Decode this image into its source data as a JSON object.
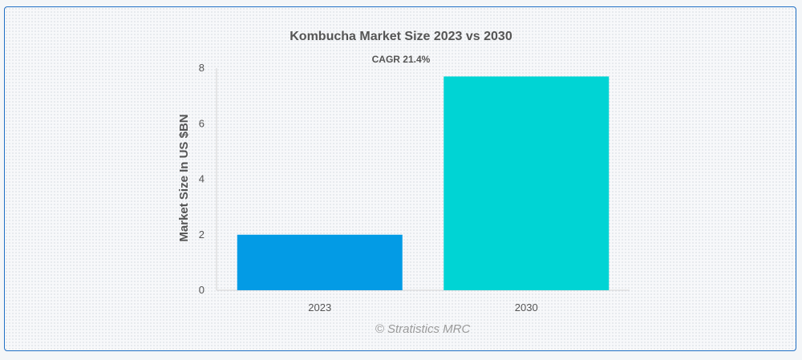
{
  "chart_data": {
    "type": "bar",
    "title": "Kombucha Market Size 2023 vs 2030",
    "subtitle": "CAGR 21.4%",
    "ylabel": "Market Size In US $BN",
    "xlabel": "",
    "categories": [
      "2023",
      "2030"
    ],
    "values": [
      2.0,
      7.7
    ],
    "colors": [
      "#039be5",
      "#00d4d4"
    ],
    "ylim": [
      0,
      8
    ],
    "yticks": [
      0,
      2,
      4,
      6,
      8
    ],
    "grid": false,
    "legend": "none"
  },
  "credit": "© Stratistics MRC"
}
